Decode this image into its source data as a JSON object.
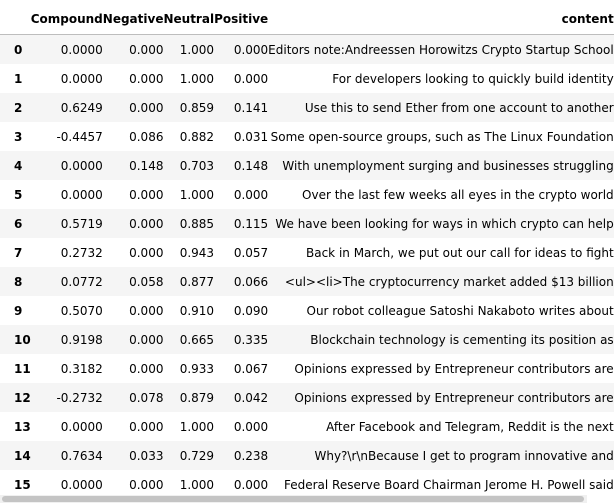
{
  "columns": [
    "",
    "Compound",
    "Negative",
    "Neutral",
    "Positive",
    "content"
  ],
  "rows": [
    {
      "index": "0",
      "compound": "0.0000",
      "negative": "0.000",
      "neutral": "1.000",
      "positive": "0.000",
      "content": "Editors note:Andreessen Horowitzs Crypto Startup School"
    },
    {
      "index": "1",
      "compound": "0.0000",
      "negative": "0.000",
      "neutral": "1.000",
      "positive": "0.000",
      "content": "For developers looking to quickly build identity"
    },
    {
      "index": "2",
      "compound": "0.6249",
      "negative": "0.000",
      "neutral": "0.859",
      "positive": "0.141",
      "content": "Use this to send Ether from one account to another"
    },
    {
      "index": "3",
      "compound": "-0.4457",
      "negative": "0.086",
      "neutral": "0.882",
      "positive": "0.031",
      "content": "Some open-source groups, such as The Linux Foundation"
    },
    {
      "index": "4",
      "compound": "0.0000",
      "negative": "0.148",
      "neutral": "0.703",
      "positive": "0.148",
      "content": "With unemployment surging and businesses struggling"
    },
    {
      "index": "5",
      "compound": "0.0000",
      "negative": "0.000",
      "neutral": "1.000",
      "positive": "0.000",
      "content": "Over the last few weeks all eyes in the crypto world"
    },
    {
      "index": "6",
      "compound": "0.5719",
      "negative": "0.000",
      "neutral": "0.885",
      "positive": "0.115",
      "content": "We have been looking for ways in which crypto can help"
    },
    {
      "index": "7",
      "compound": "0.2732",
      "negative": "0.000",
      "neutral": "0.943",
      "positive": "0.057",
      "content": "Back in March, we put out our call for ideas to fight"
    },
    {
      "index": "8",
      "compound": "0.0772",
      "negative": "0.058",
      "neutral": "0.877",
      "positive": "0.066",
      "content": "<ul><li>The cryptocurrency market added $13 billion"
    },
    {
      "index": "9",
      "compound": "0.5070",
      "negative": "0.000",
      "neutral": "0.910",
      "positive": "0.090",
      "content": "Our robot colleague Satoshi Nakaboto writes about"
    },
    {
      "index": "10",
      "compound": "0.9198",
      "negative": "0.000",
      "neutral": "0.665",
      "positive": "0.335",
      "content": "Blockchain technology is cementing its position as"
    },
    {
      "index": "11",
      "compound": "0.3182",
      "negative": "0.000",
      "neutral": "0.933",
      "positive": "0.067",
      "content": "Opinions expressed by Entrepreneur contributors are"
    },
    {
      "index": "12",
      "compound": "-0.2732",
      "negative": "0.078",
      "neutral": "0.879",
      "positive": "0.042",
      "content": "Opinions expressed by Entrepreneur contributors are"
    },
    {
      "index": "13",
      "compound": "0.0000",
      "negative": "0.000",
      "neutral": "1.000",
      "positive": "0.000",
      "content": "After Facebook and Telegram, Reddit is the next"
    },
    {
      "index": "14",
      "compound": "0.7634",
      "negative": "0.033",
      "neutral": "0.729",
      "positive": "0.238",
      "content": "Why?\\r\\nBecause I get to program innovative and"
    },
    {
      "index": "15",
      "compound": "0.0000",
      "negative": "0.000",
      "neutral": "1.000",
      "positive": "0.000",
      "content": "Federal Reserve Board Chairman Jerome H. Powell said"
    }
  ]
}
